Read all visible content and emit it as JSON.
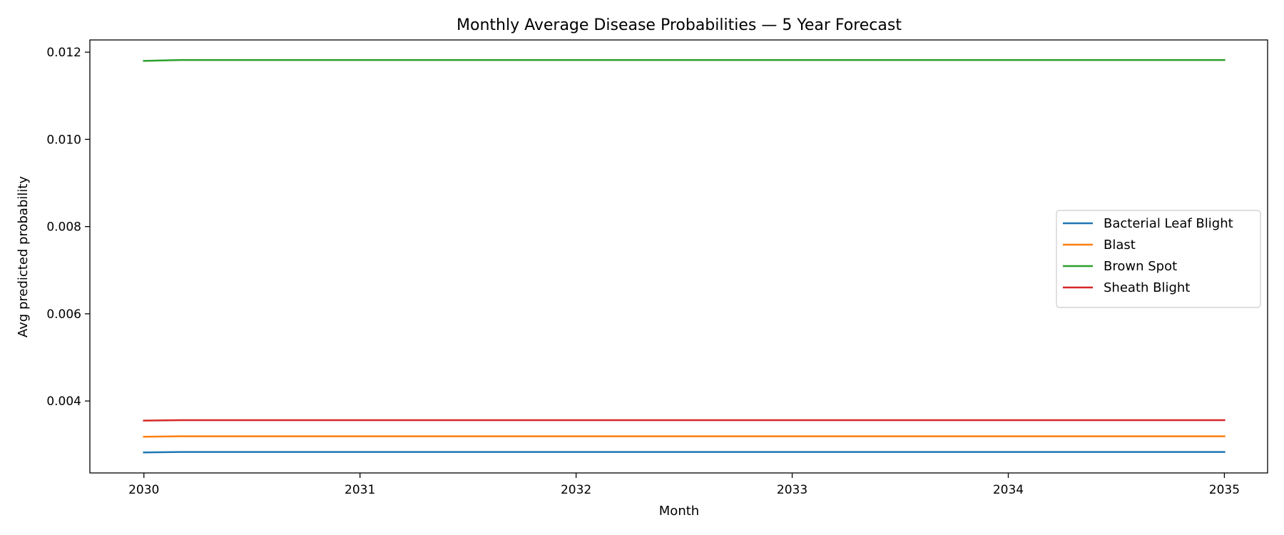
{
  "chart_data": {
    "type": "line",
    "title": "Monthly Average Disease Probabilities — 5 Year Forecast",
    "xlabel": "Month",
    "ylabel": "Avg predicted probability",
    "x_ticks": [
      "2030",
      "2031",
      "2032",
      "2033",
      "2034",
      "2035"
    ],
    "y_ticks": [
      "0.004",
      "0.006",
      "0.008",
      "0.010",
      "0.012"
    ],
    "xlim": [
      2029.75,
      2035.2
    ],
    "ylim": [
      0.00235,
      0.01228
    ],
    "grid": false,
    "legend_position": "center-right",
    "series": [
      {
        "name": "Bacterial Leaf Blight",
        "color": "#1f77b4",
        "x": [
          2030.0,
          2030.17,
          2035.0
        ],
        "y": [
          0.00282,
          0.00283,
          0.00283
        ]
      },
      {
        "name": "Blast",
        "color": "#ff7f0e",
        "x": [
          2030.0,
          2030.17,
          2035.0
        ],
        "y": [
          0.00318,
          0.00319,
          0.00319
        ]
      },
      {
        "name": "Brown Spot",
        "color": "#2ca02c",
        "x": [
          2030.0,
          2030.17,
          2035.0
        ],
        "y": [
          0.0118,
          0.01182,
          0.01182
        ]
      },
      {
        "name": "Sheath Blight",
        "color": "#d62728",
        "x": [
          2030.0,
          2030.17,
          2035.0
        ],
        "y": [
          0.00355,
          0.00356,
          0.00356
        ]
      }
    ]
  }
}
